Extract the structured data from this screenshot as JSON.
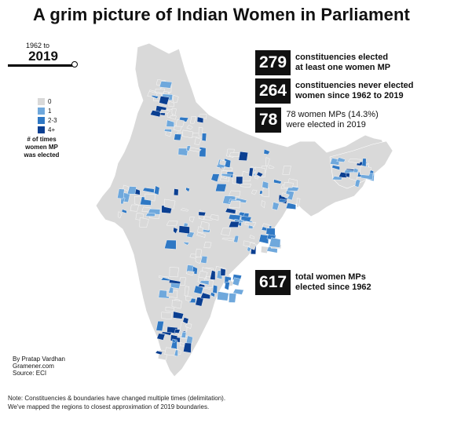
{
  "title": "A grim picture of Indian Women in Parliament",
  "slider": {
    "start_label": "1962 to",
    "current_year": "2019"
  },
  "legend": {
    "items": [
      {
        "label": "0",
        "color": "#d9d9d9"
      },
      {
        "label": "1",
        "color": "#6fa8dc"
      },
      {
        "label": "2-3",
        "color": "#2f78c4"
      },
      {
        "label": "4+",
        "color": "#0b3f91"
      }
    ],
    "title": "# of times\nwomen MP\nwas elected"
  },
  "stats": [
    {
      "number": "279",
      "text": "constituencies elected\nat least one women MP"
    },
    {
      "number": "264",
      "text": "constituencies never elected\nwomen since 1962 to 2019"
    },
    {
      "number": "78",
      "text": "78 women MPs (14.3%)\nwere elected in 2019"
    },
    {
      "number": "617",
      "text": "total women MPs\nelected since 1962"
    }
  ],
  "credit": "By Pratap Vardhan\nGramener.com\nSource: ECI",
  "note": "Note: Constituencies & boundaries have changed multiple times (delimitation).\nWe've mapped the regions to closest approximation of 2019 boundaries."
}
